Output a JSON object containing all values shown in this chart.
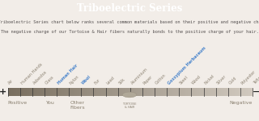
{
  "title": "Triboelectric Series",
  "title_bg": "#4a4545",
  "title_color": "#ffffff",
  "subtitle_line1": "The Triboelectric Series chart below ranks several common materials based on their positive and negative charge.",
  "subtitle_line2": "The negative charge of our Tortoise & Hair fibers naturally bonds to the positive charge of your hair.",
  "bg_color": "#f2ede8",
  "labels": [
    "Air",
    "Human Hands",
    "Asbestos",
    "Glass",
    "Human Hair",
    "Nylon",
    "Wool",
    "Fur",
    "Lead",
    "Silk",
    "Aluminium",
    "Paper",
    "Cotton",
    "Gossypium Herbaceum",
    "Steel",
    "Wood",
    "Nickel",
    "Silver",
    "Gold",
    "Polyester",
    "Teflon"
  ],
  "highlight_indices": [
    4,
    6,
    13
  ],
  "highlight_color": "#4a85cc",
  "normal_color": "#8a8070",
  "bar_dark_r": 0.47,
  "bar_dark_g": 0.43,
  "bar_dark_b": 0.37,
  "bar_light_r": 0.82,
  "bar_light_g": 0.79,
  "bar_light_b": 0.75,
  "positive_label": "Positive",
  "negative_label": "Negative",
  "you_label": "You",
  "other_fibers_label": "Other\nFibers",
  "footer_color": "#8a8070",
  "footer_fontsize": 4.5,
  "label_fontsize": 3.6,
  "title_fontsize": 8.5,
  "subtitle_fontsize": 3.8
}
